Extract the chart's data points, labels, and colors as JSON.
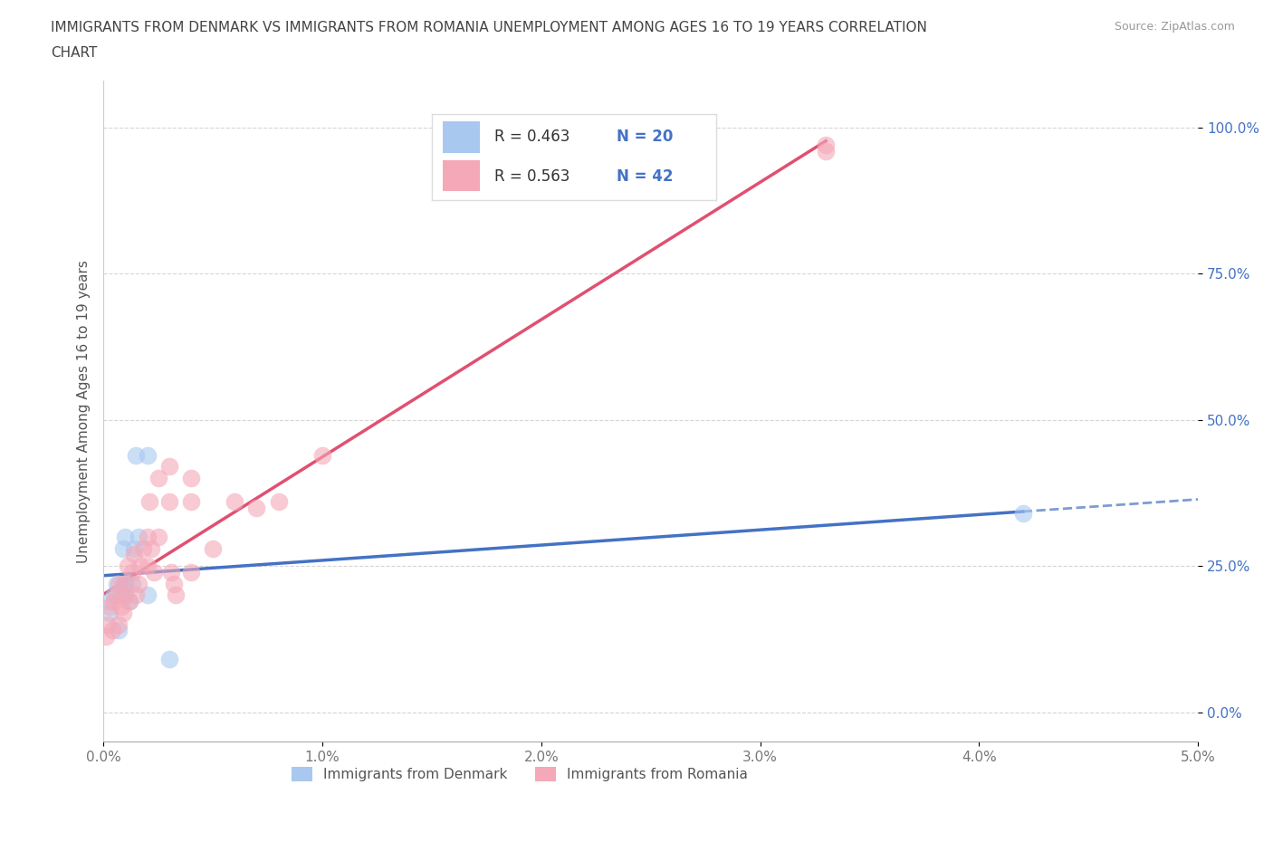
{
  "title_line1": "IMMIGRANTS FROM DENMARK VS IMMIGRANTS FROM ROMANIA UNEMPLOYMENT AMONG AGES 16 TO 19 YEARS CORRELATION",
  "title_line2": "CHART",
  "source": "Source: ZipAtlas.com",
  "ylabel": "Unemployment Among Ages 16 to 19 years",
  "xlim": [
    0.0,
    0.05
  ],
  "ylim": [
    -0.05,
    1.08
  ],
  "denmark_R": 0.463,
  "denmark_N": 20,
  "romania_R": 0.563,
  "romania_N": 42,
  "denmark_color": "#A8C8F0",
  "romania_color": "#F4A8B8",
  "denmark_line_color": "#4472C4",
  "romania_line_color": "#E05070",
  "background_color": "#FFFFFF",
  "grid_color": "#CCCCCC",
  "denmark_x": [
    0.0003,
    0.0003,
    0.0005,
    0.0006,
    0.0007,
    0.0008,
    0.0009,
    0.0009,
    0.001,
    0.001,
    0.001,
    0.0012,
    0.0013,
    0.0014,
    0.0015,
    0.0016,
    0.002,
    0.002,
    0.003,
    0.042
  ],
  "denmark_y": [
    0.17,
    0.19,
    0.2,
    0.22,
    0.14,
    0.2,
    0.22,
    0.28,
    0.2,
    0.22,
    0.3,
    0.19,
    0.22,
    0.28,
    0.44,
    0.3,
    0.44,
    0.2,
    0.09,
    0.34
  ],
  "romania_x": [
    0.0001,
    0.0002,
    0.0003,
    0.0004,
    0.0005,
    0.0006,
    0.0007,
    0.0007,
    0.0008,
    0.0009,
    0.001,
    0.001,
    0.0011,
    0.0012,
    0.0013,
    0.0014,
    0.0015,
    0.0016,
    0.0017,
    0.0018,
    0.002,
    0.002,
    0.0021,
    0.0022,
    0.0023,
    0.0025,
    0.0025,
    0.003,
    0.003,
    0.0031,
    0.0032,
    0.0033,
    0.004,
    0.004,
    0.004,
    0.005,
    0.006,
    0.007,
    0.008,
    0.01,
    0.033,
    0.033
  ],
  "romania_y": [
    0.13,
    0.15,
    0.18,
    0.14,
    0.19,
    0.2,
    0.22,
    0.15,
    0.18,
    0.17,
    0.2,
    0.22,
    0.25,
    0.19,
    0.24,
    0.27,
    0.2,
    0.22,
    0.25,
    0.28,
    0.25,
    0.3,
    0.36,
    0.28,
    0.24,
    0.3,
    0.4,
    0.36,
    0.42,
    0.24,
    0.22,
    0.2,
    0.36,
    0.4,
    0.24,
    0.28,
    0.36,
    0.35,
    0.36,
    0.44,
    0.97,
    0.96
  ],
  "xticks": [
    0.0,
    0.01,
    0.02,
    0.03,
    0.04,
    0.05
  ],
  "xtick_labels": [
    "0.0%",
    "1.0%",
    "2.0%",
    "3.0%",
    "4.0%",
    "5.0%"
  ],
  "yticks": [
    0.0,
    0.25,
    0.5,
    0.75,
    1.0
  ],
  "ytick_labels": [
    "0.0%",
    "25.0%",
    "50.0%",
    "75.0%",
    "100.0%"
  ],
  "legend_x_label_denmark": "Immigrants from Denmark",
  "legend_x_label_romania": "Immigrants from Romania"
}
